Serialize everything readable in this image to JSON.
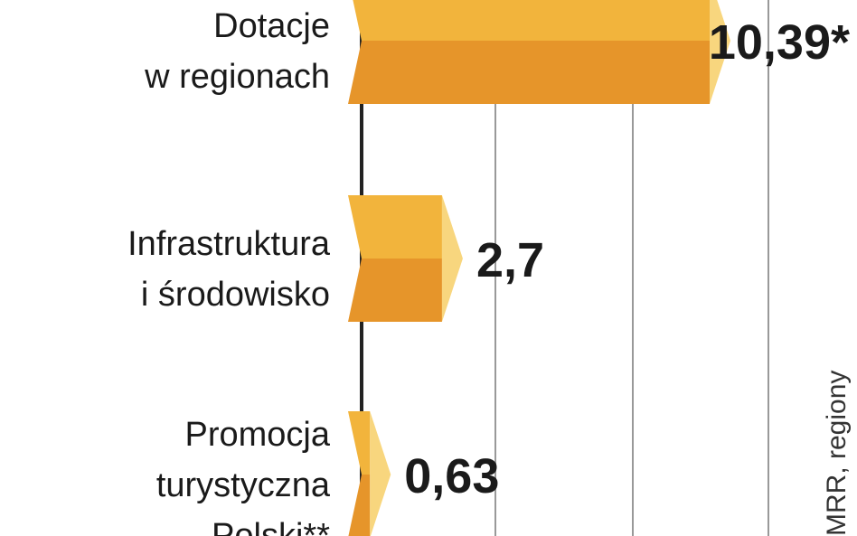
{
  "chart_data": {
    "type": "bar",
    "orientation": "horizontal",
    "categories": [
      [
        "Dotacje",
        "w regionach"
      ],
      [
        "Infrastruktura",
        "i środowisko"
      ],
      [
        "Promocja",
        "turystyczna",
        "Polski**"
      ]
    ],
    "values": [
      10.39,
      2.7,
      0.63
    ],
    "value_labels": [
      "10,39*",
      "2,7",
      "0,63"
    ],
    "xlim": [
      0,
      11
    ],
    "colors": {
      "top": "#f2b43c",
      "bottom": "#e6952a",
      "end": "#f8d67e"
    },
    "source": "MRR, regiony"
  }
}
